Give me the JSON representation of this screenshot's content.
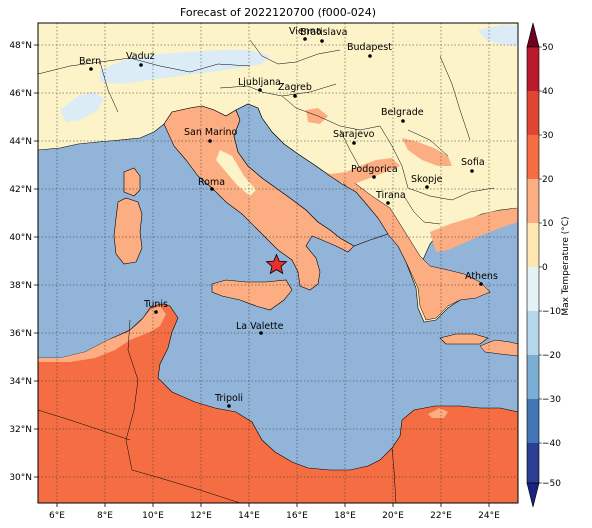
{
  "figure": {
    "title": "Forecast of 2022120700 (f000-024)"
  },
  "map": {
    "lon_ticks": [
      "6°E",
      "8°E",
      "10°E",
      "12°E",
      "14°E",
      "16°E",
      "18°E",
      "20°E",
      "22°E",
      "24°E"
    ],
    "lat_ticks": [
      "48°N",
      "46°N",
      "44°N",
      "42°N",
      "40°N",
      "38°N",
      "36°N",
      "34°N",
      "32°N",
      "30°N"
    ],
    "cities": [
      {
        "name": "Bern"
      },
      {
        "name": "Vaduz"
      },
      {
        "name": "Vienna"
      },
      {
        "name": "Bratislava"
      },
      {
        "name": "Budapest"
      },
      {
        "name": "Ljubljana"
      },
      {
        "name": "Zagreb"
      },
      {
        "name": "Belgrade"
      },
      {
        "name": "San Marino"
      },
      {
        "name": "Sarajevo"
      },
      {
        "name": "Sofia"
      },
      {
        "name": "Podgorica"
      },
      {
        "name": "Skopje"
      },
      {
        "name": "Roma"
      },
      {
        "name": "Tirana"
      },
      {
        "name": "Athens"
      },
      {
        "name": "Tunis"
      },
      {
        "name": "La Valette"
      },
      {
        "name": "Tripoli"
      }
    ],
    "marker": {
      "type": "star",
      "color": "#e83030"
    }
  },
  "colorbar": {
    "label": "Max Temperature (°C)",
    "ticks": [
      "50",
      "40",
      "30",
      "20",
      "10",
      "0",
      "−10",
      "−20",
      "−30",
      "−40",
      "−50"
    ],
    "colors": [
      "#6f0222",
      "#b81a2c",
      "#e04533",
      "#f46d43",
      "#fcad82",
      "#fee6b0",
      "#e4f2f5",
      "#b4d8e9",
      "#7aaed4",
      "#4376b4",
      "#2c3e92"
    ]
  }
}
